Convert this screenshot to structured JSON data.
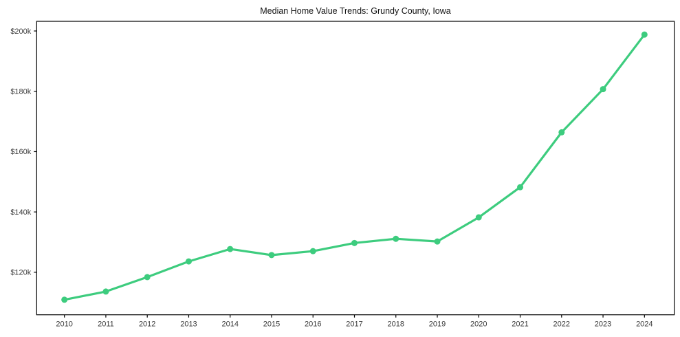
{
  "figure": {
    "title": "Median Home Value Trends: Grundy County, Iowa"
  },
  "chart_data": {
    "type": "line",
    "title": "Median Home Value Trends: Grundy County, Iowa",
    "x": [
      2010,
      2011,
      2012,
      2013,
      2014,
      2015,
      2016,
      2017,
      2018,
      2019,
      2020,
      2021,
      2022,
      2023,
      2024
    ],
    "series": [
      {
        "name": "Median Home Value",
        "values": [
          110900,
          113600,
          118400,
          123600,
          127700,
          125700,
          127000,
          129700,
          131100,
          130200,
          138200,
          148200,
          166400,
          180700,
          198800
        ]
      }
    ],
    "xlabel": "",
    "ylabel": "",
    "xlim": [
      2009.33,
      2024.72
    ],
    "ylim": [
      105900,
      203200
    ],
    "yticks": [
      120000,
      140000,
      160000,
      180000,
      200000
    ],
    "ytick_labels": [
      "$120k",
      "$140k",
      "$160k",
      "$180k",
      "$200k"
    ],
    "xtick_labels": [
      "2010",
      "2011",
      "2012",
      "2013",
      "2014",
      "2015",
      "2016",
      "2017",
      "2018",
      "2019",
      "2020",
      "2021",
      "2022",
      "2023",
      "2024"
    ],
    "grid": false,
    "legend": "none",
    "line_color": "#3dcc7e",
    "marker": "circle",
    "axis_color": "#000000",
    "tick_label_color": "#3a3a3a",
    "title_color": "#111111",
    "background": "#ffffff"
  }
}
